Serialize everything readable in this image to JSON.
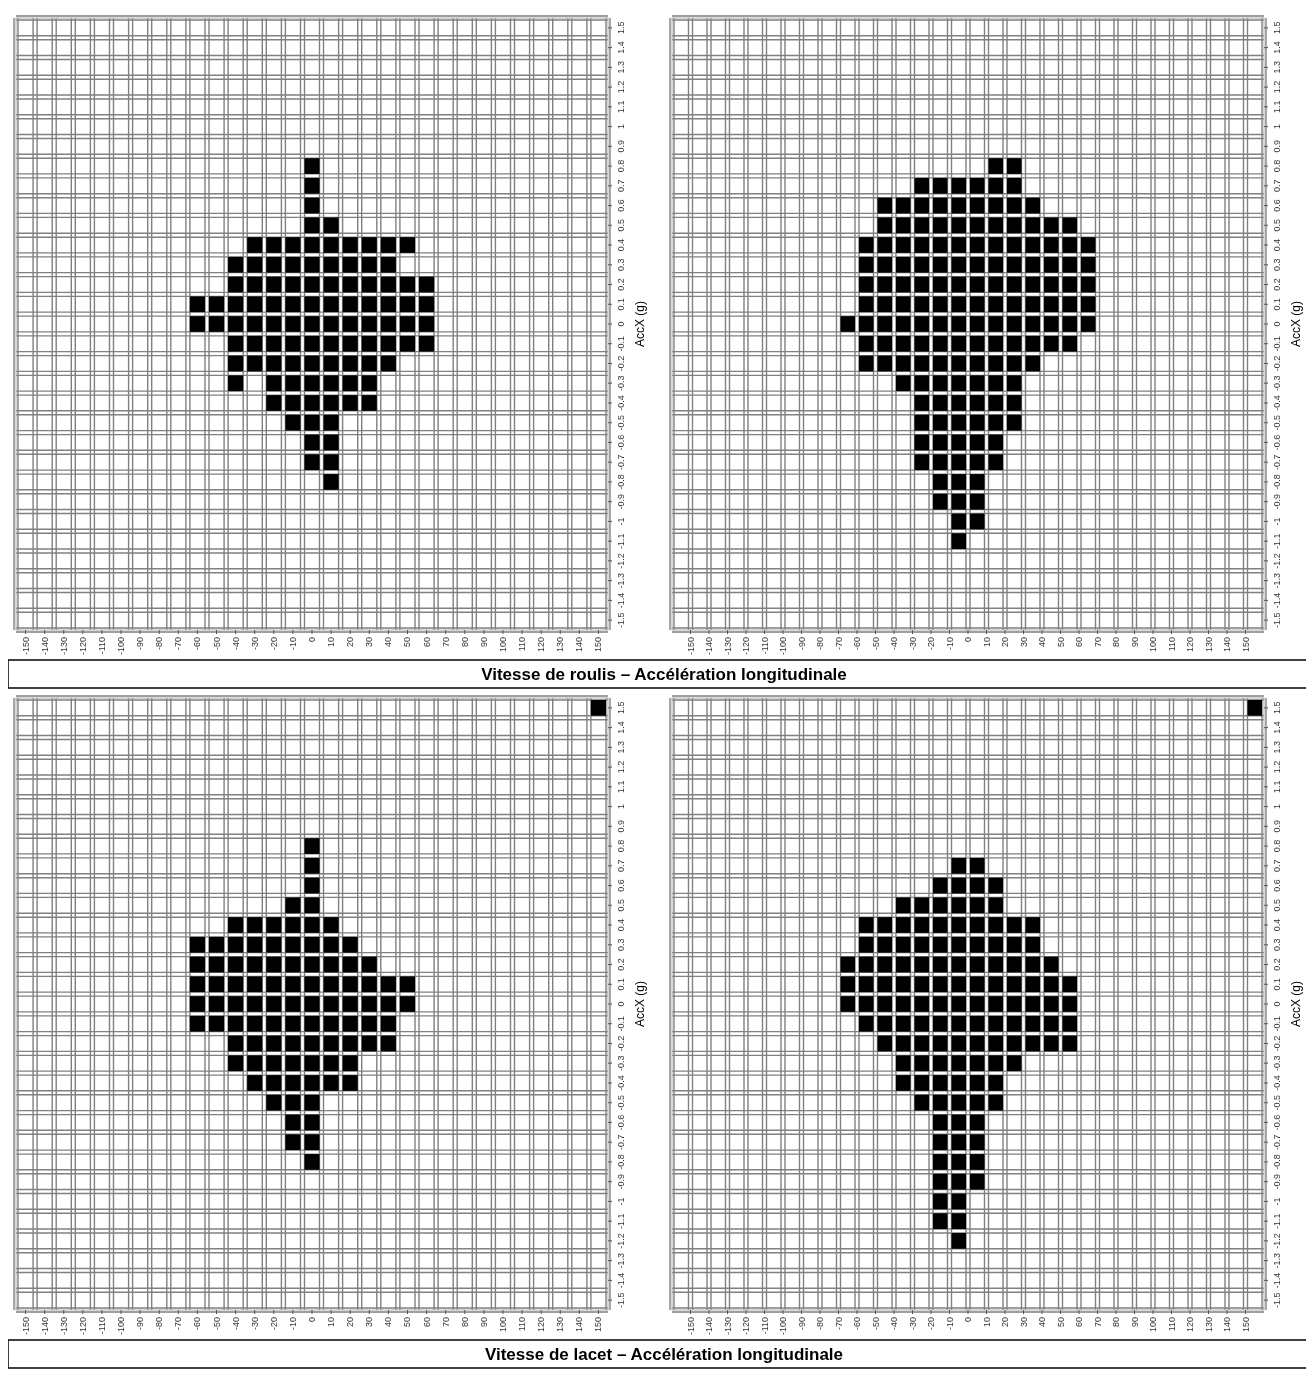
{
  "chart_data": [
    {
      "type": "scatter",
      "title": "Vitesse de roulis – Accélération longitudinale",
      "ylabel": "AccX (g)",
      "color": "#000000",
      "marker": "square",
      "grid": true,
      "x": [
        0,
        0,
        0,
        0,
        10,
        -30,
        -20,
        -10,
        0,
        10,
        20,
        30,
        40,
        50,
        -40,
        -30,
        -20,
        -10,
        0,
        10,
        20,
        30,
        40,
        -40,
        -30,
        -20,
        -10,
        0,
        10,
        20,
        30,
        40,
        50,
        60,
        -60,
        -50,
        -40,
        -30,
        -20,
        -10,
        0,
        10,
        20,
        30,
        40,
        50,
        60,
        -60,
        -50,
        -40,
        -30,
        -20,
        -10,
        0,
        10,
        20,
        30,
        40,
        50,
        60,
        -40,
        -30,
        -20,
        -10,
        0,
        10,
        20,
        30,
        40,
        50,
        60,
        -40,
        -30,
        -20,
        -10,
        0,
        10,
        20,
        30,
        40,
        -40,
        -20,
        -10,
        0,
        10,
        20,
        30,
        -20,
        -10,
        0,
        10,
        20,
        30,
        -10,
        0,
        10,
        0,
        10,
        0,
        10,
        10
      ],
      "values": [
        0.8,
        0.7,
        0.6,
        0.5,
        0.5,
        0.4,
        0.4,
        0.4,
        0.4,
        0.4,
        0.4,
        0.4,
        0.4,
        0.4,
        0.3,
        0.3,
        0.3,
        0.3,
        0.3,
        0.3,
        0.3,
        0.3,
        0.3,
        0.2,
        0.2,
        0.2,
        0.2,
        0.2,
        0.2,
        0.2,
        0.2,
        0.2,
        0.2,
        0.2,
        0.1,
        0.1,
        0.1,
        0.1,
        0.1,
        0.1,
        0.1,
        0.1,
        0.1,
        0.1,
        0.1,
        0.1,
        0.1,
        0,
        0,
        0,
        0,
        0,
        0,
        0,
        0,
        0,
        0,
        0,
        0,
        0,
        -0.1,
        -0.1,
        -0.1,
        -0.1,
        -0.1,
        -0.1,
        -0.1,
        -0.1,
        -0.1,
        -0.1,
        -0.1,
        -0.2,
        -0.2,
        -0.2,
        -0.2,
        -0.2,
        -0.2,
        -0.2,
        -0.2,
        -0.2,
        -0.3,
        -0.3,
        -0.3,
        -0.3,
        -0.3,
        -0.3,
        -0.3,
        -0.4,
        -0.4,
        -0.4,
        -0.4,
        -0.4,
        -0.4,
        -0.5,
        -0.5,
        -0.5,
        -0.6,
        -0.6,
        -0.7,
        -0.7,
        -0.8
      ],
      "xlim": [
        -155,
        155
      ],
      "ylim": [
        -1.55,
        1.55
      ],
      "xticks": [
        -150,
        -140,
        -130,
        -120,
        -110,
        -100,
        -90,
        -80,
        -70,
        -60,
        -50,
        -40,
        -30,
        -20,
        -10,
        0,
        10,
        20,
        30,
        40,
        50,
        60,
        70,
        80,
        90,
        100,
        110,
        120,
        130,
        140,
        150
      ],
      "yticks": [
        -1.5,
        -1.4,
        -1.3,
        -1.2,
        -1.1,
        -1,
        -0.9,
        -0.8,
        -0.7,
        -0.6,
        -0.5,
        -0.4,
        -0.3,
        -0.2,
        -0.1,
        0,
        0.1,
        0.2,
        0.3,
        0.4,
        0.5,
        0.6,
        0.7,
        0.8,
        0.9,
        1,
        1.1,
        1.2,
        1.3,
        1.4,
        1.5
      ]
    },
    {
      "type": "scatter",
      "ylabel": "AccX (g)",
      "color": "#000000",
      "marker": "square",
      "grid": true,
      "x": [
        15,
        25,
        -25,
        -15,
        -5,
        5,
        15,
        25,
        -45,
        -35,
        -25,
        -15,
        -5,
        5,
        15,
        25,
        35,
        -45,
        -35,
        -25,
        -15,
        -5,
        5,
        15,
        25,
        35,
        45,
        55,
        -55,
        -45,
        -35,
        -25,
        -15,
        -5,
        5,
        15,
        25,
        35,
        45,
        55,
        65,
        -55,
        -45,
        -35,
        -25,
        -15,
        -5,
        5,
        15,
        25,
        35,
        45,
        55,
        65,
        -55,
        -45,
        -35,
        -25,
        -15,
        -5,
        5,
        15,
        25,
        35,
        45,
        55,
        65,
        -55,
        -45,
        -35,
        -25,
        -15,
        -5,
        5,
        15,
        25,
        35,
        45,
        55,
        65,
        -65,
        -55,
        -45,
        -35,
        -25,
        -15,
        -5,
        5,
        15,
        25,
        35,
        45,
        55,
        65,
        -55,
        -45,
        -35,
        -25,
        -15,
        -5,
        5,
        15,
        25,
        35,
        45,
        55,
        -55,
        -45,
        -35,
        -25,
        -15,
        -5,
        5,
        15,
        25,
        35,
        -35,
        -25,
        -15,
        -5,
        5,
        15,
        25,
        -25,
        -15,
        -5,
        5,
        15,
        25,
        -25,
        -15,
        -5,
        5,
        15,
        25,
        -25,
        -15,
        -5,
        5,
        15,
        -25,
        -15,
        -5,
        5,
        15,
        -15,
        -5,
        5,
        -15,
        -5,
        5,
        -5,
        5,
        -5
      ],
      "values": [
        0.8,
        0.8,
        0.7,
        0.7,
        0.7,
        0.7,
        0.7,
        0.7,
        0.6,
        0.6,
        0.6,
        0.6,
        0.6,
        0.6,
        0.6,
        0.6,
        0.6,
        0.5,
        0.5,
        0.5,
        0.5,
        0.5,
        0.5,
        0.5,
        0.5,
        0.5,
        0.5,
        0.5,
        0.4,
        0.4,
        0.4,
        0.4,
        0.4,
        0.4,
        0.4,
        0.4,
        0.4,
        0.4,
        0.4,
        0.4,
        0.4,
        0.3,
        0.3,
        0.3,
        0.3,
        0.3,
        0.3,
        0.3,
        0.3,
        0.3,
        0.3,
        0.3,
        0.3,
        0.3,
        0.2,
        0.2,
        0.2,
        0.2,
        0.2,
        0.2,
        0.2,
        0.2,
        0.2,
        0.2,
        0.2,
        0.2,
        0.2,
        0.1,
        0.1,
        0.1,
        0.1,
        0.1,
        0.1,
        0.1,
        0.1,
        0.1,
        0.1,
        0.1,
        0.1,
        0.1,
        0,
        0,
        0,
        0,
        0,
        0,
        0,
        0,
        0,
        0,
        0,
        0,
        0,
        0,
        -0.1,
        -0.1,
        -0.1,
        -0.1,
        -0.1,
        -0.1,
        -0.1,
        -0.1,
        -0.1,
        -0.1,
        -0.1,
        -0.1,
        -0.2,
        -0.2,
        -0.2,
        -0.2,
        -0.2,
        -0.2,
        -0.2,
        -0.2,
        -0.2,
        -0.2,
        -0.3,
        -0.3,
        -0.3,
        -0.3,
        -0.3,
        -0.3,
        -0.3,
        -0.4,
        -0.4,
        -0.4,
        -0.4,
        -0.4,
        -0.4,
        -0.5,
        -0.5,
        -0.5,
        -0.5,
        -0.5,
        -0.5,
        -0.6,
        -0.6,
        -0.6,
        -0.6,
        -0.6,
        -0.7,
        -0.7,
        -0.7,
        -0.7,
        -0.7,
        -0.8,
        -0.8,
        -0.8,
        -0.9,
        -0.9,
        -0.9,
        -1,
        -1,
        -1.1
      ],
      "xlim": [
        -160,
        160
      ],
      "ylim": [
        -1.55,
        1.55
      ],
      "xticks": [
        -150,
        -140,
        -130,
        -120,
        -110,
        -100,
        -90,
        -80,
        -70,
        -60,
        -50,
        -40,
        -30,
        -20,
        -10,
        0,
        10,
        20,
        30,
        40,
        50,
        60,
        70,
        80,
        90,
        100,
        110,
        120,
        130,
        140,
        150
      ],
      "yticks": [
        -1.5,
        -1.4,
        -1.3,
        -1.2,
        -1.1,
        -1,
        -0.9,
        -0.8,
        -0.7,
        -0.6,
        -0.5,
        -0.4,
        -0.3,
        -0.2,
        -0.1,
        0,
        0.1,
        0.2,
        0.3,
        0.4,
        0.5,
        0.6,
        0.7,
        0.8,
        0.9,
        1,
        1.1,
        1.2,
        1.3,
        1.4,
        1.5
      ]
    },
    {
      "type": "scatter",
      "title": "Vitesse de lacet – Accélération longitudinale",
      "ylabel": "AccX (g)",
      "color": "#000000",
      "marker": "square",
      "grid": true,
      "x": [
        150,
        0,
        0,
        0,
        -10,
        0,
        -40,
        -30,
        -20,
        -10,
        0,
        10,
        -60,
        -50,
        -40,
        -30,
        -20,
        -10,
        0,
        10,
        20,
        -60,
        -50,
        -40,
        -30,
        -20,
        -10,
        0,
        10,
        20,
        30,
        -60,
        -50,
        -40,
        -30,
        -20,
        -10,
        0,
        10,
        20,
        30,
        40,
        50,
        -60,
        -50,
        -40,
        -30,
        -20,
        -10,
        0,
        10,
        20,
        30,
        40,
        50,
        -60,
        -50,
        -40,
        -30,
        -20,
        -10,
        0,
        10,
        20,
        30,
        40,
        -40,
        -30,
        -20,
        -10,
        0,
        10,
        20,
        30,
        40,
        -40,
        -30,
        -20,
        -10,
        0,
        10,
        20,
        -30,
        -20,
        -10,
        0,
        10,
        20,
        -20,
        -10,
        0,
        -10,
        0,
        -10,
        0,
        0
      ],
      "values": [
        1.5,
        0.8,
        0.7,
        0.6,
        0.5,
        0.5,
        0.4,
        0.4,
        0.4,
        0.4,
        0.4,
        0.4,
        0.3,
        0.3,
        0.3,
        0.3,
        0.3,
        0.3,
        0.3,
        0.3,
        0.3,
        0.2,
        0.2,
        0.2,
        0.2,
        0.2,
        0.2,
        0.2,
        0.2,
        0.2,
        0.2,
        0.1,
        0.1,
        0.1,
        0.1,
        0.1,
        0.1,
        0.1,
        0.1,
        0.1,
        0.1,
        0.1,
        0.1,
        0,
        0,
        0,
        0,
        0,
        0,
        0,
        0,
        0,
        0,
        0,
        0,
        -0.1,
        -0.1,
        -0.1,
        -0.1,
        -0.1,
        -0.1,
        -0.1,
        -0.1,
        -0.1,
        -0.1,
        -0.1,
        -0.2,
        -0.2,
        -0.2,
        -0.2,
        -0.2,
        -0.2,
        -0.2,
        -0.2,
        -0.2,
        -0.3,
        -0.3,
        -0.3,
        -0.3,
        -0.3,
        -0.3,
        -0.3,
        -0.4,
        -0.4,
        -0.4,
        -0.4,
        -0.4,
        -0.4,
        -0.5,
        -0.5,
        -0.5,
        -0.6,
        -0.6,
        -0.7,
        -0.7,
        -0.8
      ],
      "xlim": [
        -155,
        155
      ],
      "ylim": [
        -1.55,
        1.55
      ],
      "xticks": [
        -150,
        -140,
        -130,
        -120,
        -110,
        -100,
        -90,
        -80,
        -70,
        -60,
        -50,
        -40,
        -30,
        -20,
        -10,
        0,
        10,
        20,
        30,
        40,
        50,
        60,
        70,
        80,
        90,
        100,
        110,
        120,
        130,
        140,
        150
      ],
      "yticks": [
        -1.5,
        -1.4,
        -1.3,
        -1.2,
        -1.1,
        -1,
        -0.9,
        -0.8,
        -0.7,
        -0.6,
        -0.5,
        -0.4,
        -0.3,
        -0.2,
        -0.1,
        0,
        0.1,
        0.2,
        0.3,
        0.4,
        0.5,
        0.6,
        0.7,
        0.8,
        0.9,
        1,
        1.1,
        1.2,
        1.3,
        1.4,
        1.5
      ]
    },
    {
      "type": "scatter",
      "ylabel": "AccX (g)",
      "color": "#000000",
      "marker": "square",
      "grid": true,
      "x": [
        155,
        -5,
        5,
        -15,
        -5,
        5,
        15,
        -35,
        -25,
        -15,
        -5,
        5,
        15,
        -55,
        -45,
        -35,
        -25,
        -15,
        -5,
        5,
        15,
        25,
        35,
        -55,
        -45,
        -35,
        -25,
        -15,
        -5,
        5,
        15,
        25,
        35,
        -65,
        -55,
        -45,
        -35,
        -25,
        -15,
        -5,
        5,
        15,
        25,
        35,
        45,
        -65,
        -55,
        -45,
        -35,
        -25,
        -15,
        -5,
        5,
        15,
        25,
        35,
        45,
        55,
        -65,
        -55,
        -45,
        -35,
        -25,
        -15,
        -5,
        5,
        15,
        25,
        35,
        45,
        55,
        -55,
        -45,
        -35,
        -25,
        -15,
        -5,
        5,
        15,
        25,
        35,
        45,
        55,
        -45,
        -35,
        -25,
        -15,
        -5,
        5,
        15,
        25,
        35,
        45,
        55,
        -35,
        -25,
        -15,
        -5,
        5,
        15,
        25,
        -35,
        -25,
        -15,
        -5,
        5,
        15,
        -25,
        -15,
        -5,
        5,
        15,
        -15,
        -5,
        5,
        -15,
        -5,
        5,
        -15,
        -5,
        5,
        -15,
        -5,
        5,
        -15,
        -5,
        -15,
        -5,
        -5
      ],
      "values": [
        1.5,
        0.7,
        0.7,
        0.6,
        0.6,
        0.6,
        0.6,
        0.5,
        0.5,
        0.5,
        0.5,
        0.5,
        0.5,
        0.4,
        0.4,
        0.4,
        0.4,
        0.4,
        0.4,
        0.4,
        0.4,
        0.4,
        0.4,
        0.3,
        0.3,
        0.3,
        0.3,
        0.3,
        0.3,
        0.3,
        0.3,
        0.3,
        0.3,
        0.2,
        0.2,
        0.2,
        0.2,
        0.2,
        0.2,
        0.2,
        0.2,
        0.2,
        0.2,
        0.2,
        0.2,
        0.1,
        0.1,
        0.1,
        0.1,
        0.1,
        0.1,
        0.1,
        0.1,
        0.1,
        0.1,
        0.1,
        0.1,
        0.1,
        0,
        0,
        0,
        0,
        0,
        0,
        0,
        0,
        0,
        0,
        0,
        0,
        0,
        -0.1,
        -0.1,
        -0.1,
        -0.1,
        -0.1,
        -0.1,
        -0.1,
        -0.1,
        -0.1,
        -0.1,
        -0.1,
        -0.1,
        -0.2,
        -0.2,
        -0.2,
        -0.2,
        -0.2,
        -0.2,
        -0.2,
        -0.2,
        -0.2,
        -0.2,
        -0.2,
        -0.3,
        -0.3,
        -0.3,
        -0.3,
        -0.3,
        -0.3,
        -0.3,
        -0.4,
        -0.4,
        -0.4,
        -0.4,
        -0.4,
        -0.4,
        -0.5,
        -0.5,
        -0.5,
        -0.5,
        -0.5,
        -0.6,
        -0.6,
        -0.6,
        -0.7,
        -0.7,
        -0.7,
        -0.8,
        -0.8,
        -0.8,
        -0.9,
        -0.9,
        -0.9,
        -1,
        -1,
        -1.1,
        -1.1,
        -1.2
      ],
      "xlim": [
        -160,
        160
      ],
      "ylim": [
        -1.55,
        1.55
      ],
      "xticks": [
        -150,
        -140,
        -130,
        -120,
        -110,
        -100,
        -90,
        -80,
        -70,
        -60,
        -50,
        -40,
        -30,
        -20,
        -10,
        0,
        10,
        20,
        30,
        40,
        50,
        60,
        70,
        80,
        90,
        100,
        110,
        120,
        130,
        140,
        150
      ],
      "yticks": [
        -1.5,
        -1.4,
        -1.3,
        -1.2,
        -1.1,
        -1,
        -0.9,
        -0.8,
        -0.7,
        -0.6,
        -0.5,
        -0.4,
        -0.3,
        -0.2,
        -0.1,
        0,
        0.1,
        0.2,
        0.3,
        0.4,
        0.5,
        0.6,
        0.7,
        0.8,
        0.9,
        1,
        1.1,
        1.2,
        1.3,
        1.4,
        1.5
      ]
    }
  ]
}
